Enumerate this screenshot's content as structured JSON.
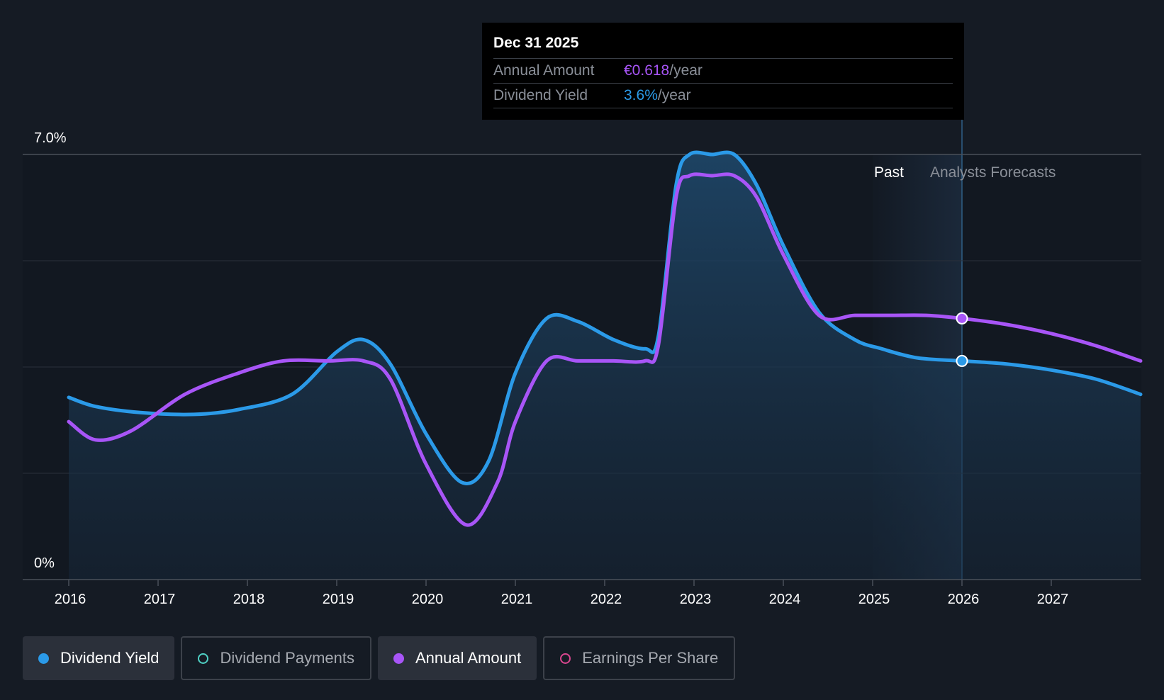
{
  "tooltip": {
    "date": "Dec 31 2025",
    "rows": [
      {
        "label": "Annual Amount",
        "value": "€0.618",
        "unit": "/year"
      },
      {
        "label": "Dividend Yield",
        "value": "3.6%",
        "unit": "/year"
      }
    ]
  },
  "legend": [
    {
      "label": "Dividend Yield",
      "color": "#2b9ae8",
      "active": true
    },
    {
      "label": "Dividend Payments",
      "color": "#4fd1c5",
      "active": false
    },
    {
      "label": "Annual Amount",
      "color": "#a855f7",
      "active": true
    },
    {
      "label": "Earnings Per Share",
      "color": "#d9468f",
      "active": false
    }
  ],
  "chart_data": {
    "type": "line",
    "ylim": [
      0,
      7.0
    ],
    "ytick_labels": [
      "0%",
      "7.0%"
    ],
    "x_ticks": [
      "2016",
      "2017",
      "2018",
      "2019",
      "2020",
      "2021",
      "2022",
      "2023",
      "2024",
      "2025",
      "2026",
      "2027"
    ],
    "xlim": [
      2016,
      2028
    ],
    "region_labels": {
      "past": "Past",
      "forecast": "Analysts Forecasts"
    },
    "forecast_start": 2026.0,
    "series": [
      {
        "name": "Dividend Yield",
        "color": "#2b9ae8",
        "x": [
          2016.0,
          2016.3,
          2016.8,
          2017.4,
          2017.9,
          2018.5,
          2019.0,
          2019.3,
          2019.6,
          2020.0,
          2020.4,
          2020.7,
          2021.0,
          2021.35,
          2021.7,
          2022.1,
          2022.45,
          2022.6,
          2022.8,
          2022.95,
          2023.2,
          2023.45,
          2023.7,
          2024.0,
          2024.4,
          2024.8,
          2025.1,
          2025.5,
          2026.0,
          2026.5,
          2027.0,
          2027.5,
          2028.0
        ],
        "values": [
          3.0,
          2.85,
          2.75,
          2.72,
          2.8,
          3.05,
          3.75,
          3.95,
          3.55,
          2.4,
          1.6,
          1.95,
          3.4,
          4.3,
          4.25,
          3.95,
          3.8,
          4.0,
          6.5,
          7.0,
          7.0,
          7.0,
          6.5,
          5.5,
          4.4,
          3.95,
          3.8,
          3.65,
          3.6,
          3.55,
          3.45,
          3.3,
          3.05
        ]
      },
      {
        "name": "Annual Amount",
        "color": "#a855f7",
        "x": [
          2016.0,
          2016.3,
          2016.7,
          2017.3,
          2017.9,
          2018.4,
          2018.9,
          2019.3,
          2019.6,
          2020.0,
          2020.45,
          2020.8,
          2021.0,
          2021.35,
          2021.7,
          2022.1,
          2022.45,
          2022.6,
          2022.8,
          2022.95,
          2023.2,
          2023.45,
          2023.7,
          2024.0,
          2024.4,
          2024.8,
          2025.2,
          2025.6,
          2026.0,
          2026.5,
          2027.0,
          2027.5,
          2028.0
        ],
        "values": [
          2.6,
          2.3,
          2.45,
          3.05,
          3.4,
          3.6,
          3.6,
          3.6,
          3.3,
          1.9,
          0.9,
          1.6,
          2.6,
          3.6,
          3.6,
          3.6,
          3.6,
          3.85,
          6.3,
          6.65,
          6.65,
          6.65,
          6.3,
          5.35,
          4.35,
          4.35,
          4.35,
          4.35,
          4.3,
          4.2,
          4.05,
          3.85,
          3.6
        ]
      }
    ]
  }
}
